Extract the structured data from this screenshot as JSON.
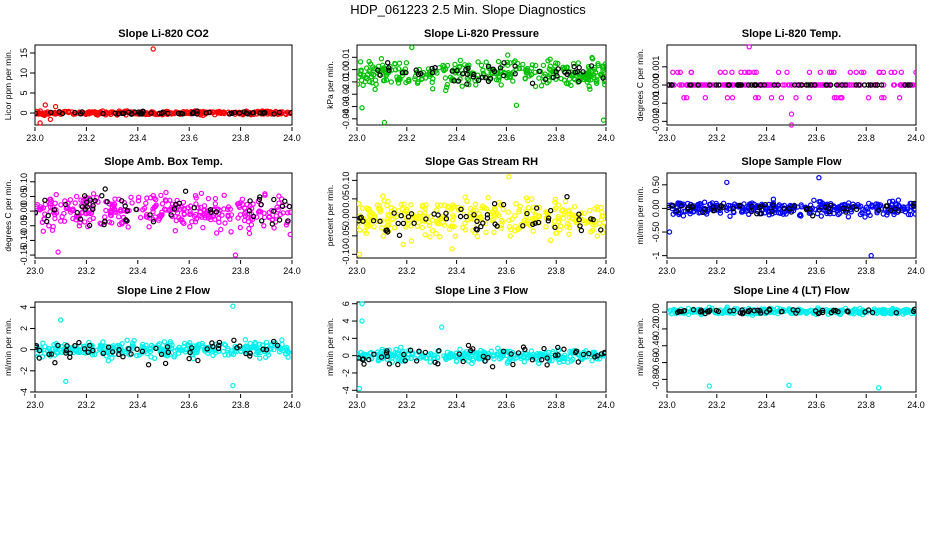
{
  "page": {
    "title": "HDP_061223  2.5 Min. Slope Diagnostics"
  },
  "chart_data": [
    {
      "type": "scatter",
      "title": "Slope Li-820 CO2",
      "ylabel": "Licor ppm per min.",
      "xlim": [
        23.0,
        24.0
      ],
      "xticks": [
        "23.0",
        "23.2",
        "23.4",
        "23.6",
        "23.8",
        "24.0"
      ],
      "ylim": [
        -3,
        17
      ],
      "yticks": [
        -5,
        0,
        5,
        10,
        15
      ],
      "color": "#ff0000",
      "sd": 0.35,
      "black_sd": 0.3,
      "baseline": 0,
      "outliers": [
        {
          "x": 23.46,
          "y": 16.0
        },
        {
          "x": 23.02,
          "y": -2.5
        },
        {
          "x": 23.04,
          "y": 2.0
        },
        {
          "x": 23.08,
          "y": 1.6
        },
        {
          "x": 23.06,
          "y": -1.6
        }
      ]
    },
    {
      "type": "scatter",
      "title": "Slope Li-820 Pressure",
      "ylabel": "kPa per min.",
      "xlim": [
        23.0,
        24.0
      ],
      "xticks": [
        "23.0",
        "23.2",
        "23.4",
        "23.6",
        "23.8",
        "24.0"
      ],
      "ylim": [
        -0.045,
        0.02
      ],
      "yticks": [
        -0.04,
        -0.03,
        -0.02,
        -0.01,
        0.0,
        0.01
      ],
      "color": "#00c000",
      "sd": 0.009,
      "black_sd": 0.007,
      "baseline": -0.003,
      "outliers": [
        {
          "x": 23.11,
          "y": -0.043
        },
        {
          "x": 23.99,
          "y": -0.041
        },
        {
          "x": 23.22,
          "y": 0.018
        },
        {
          "x": 23.02,
          "y": -0.031
        },
        {
          "x": 23.64,
          "y": -0.029
        }
      ]
    },
    {
      "type": "scatter",
      "title": "Slope Li-820 Temp.",
      "ylabel": "degrees C per min.",
      "xlim": [
        23.0,
        24.0
      ],
      "xticks": [
        "23.0",
        "23.2",
        "23.4",
        "23.6",
        "23.8",
        "24.0"
      ],
      "ylim": [
        -0.0022,
        0.0022
      ],
      "yticks": [
        -0.002,
        -0.001,
        0.0,
        0.001
      ],
      "color": "#ff00ff",
      "quantized": [
        0.0007,
        0,
        -0.0007
      ],
      "baseline": 0,
      "outliers": [
        {
          "x": 23.33,
          "y": 0.0021
        },
        {
          "x": 23.5,
          "y": -0.0016
        },
        {
          "x": 23.5,
          "y": -0.0022
        }
      ]
    },
    {
      "type": "scatter",
      "title": "Slope Amb. Box Temp.",
      "ylabel": "degrees C per min.",
      "xlim": [
        23.0,
        24.0
      ],
      "xticks": [
        "23.0",
        "23.2",
        "23.4",
        "23.6",
        "23.8",
        "24.0"
      ],
      "ylim": [
        -0.16,
        0.13
      ],
      "yticks": [
        -0.15,
        -0.1,
        -0.05,
        0.0,
        0.05,
        0.1
      ],
      "color": "#ff00ff",
      "sd": 0.05,
      "black_sd": 0.05,
      "baseline": 0,
      "outliers": [
        {
          "x": 23.09,
          "y": -0.14
        },
        {
          "x": 23.78,
          "y": -0.15
        }
      ]
    },
    {
      "type": "scatter",
      "title": "Slope Gas Stream RH",
      "ylabel": "percent per min.",
      "xlim": [
        23.0,
        24.0
      ],
      "xticks": [
        "23.0",
        "23.2",
        "23.4",
        "23.6",
        "23.8",
        "24.0"
      ],
      "ylim": [
        -0.11,
        0.12
      ],
      "yticks": [
        -0.1,
        -0.05,
        0.0,
        0.05,
        0.1
      ],
      "color": "#ffff00",
      "sd": 0.045,
      "black_sd": 0.04,
      "baseline": 0,
      "outliers": [
        {
          "x": 23.01,
          "y": -0.1
        },
        {
          "x": 23.61,
          "y": 0.11
        }
      ]
    },
    {
      "type": "scatter",
      "title": "Slope Sample Flow",
      "ylabel": "ml/min per min.",
      "xlim": [
        23.0,
        24.0
      ],
      "xticks": [
        "23.0",
        "23.2",
        "23.4",
        "23.6",
        "23.8",
        "24.0"
      ],
      "ylim": [
        -1.05,
        0.75
      ],
      "yticks": [
        -1.0,
        -0.5,
        0.0,
        0.5
      ],
      "color": "#0000ff",
      "sd": 0.13,
      "black_sd": 0.1,
      "baseline": 0,
      "outliers": [
        {
          "x": 23.61,
          "y": 0.65
        },
        {
          "x": 23.82,
          "y": -1.0
        },
        {
          "x": 23.24,
          "y": 0.55
        },
        {
          "x": 23.01,
          "y": -0.5
        }
      ]
    },
    {
      "type": "scatter",
      "title": "Slope Line 2 Flow",
      "ylabel": "ml/min per min.",
      "xlim": [
        23.0,
        24.0
      ],
      "xticks": [
        "23.0",
        "23.2",
        "23.4",
        "23.6",
        "23.8",
        "24.0"
      ],
      "ylim": [
        -4,
        4.5
      ],
      "yticks": [
        -4,
        -2,
        0,
        2,
        4
      ],
      "color": "#00f0f0",
      "sd": 0.55,
      "black_sd": 0.9,
      "baseline": 0,
      "outliers": [
        {
          "x": 23.77,
          "y": 4.1
        },
        {
          "x": 23.77,
          "y": -3.4
        },
        {
          "x": 23.1,
          "y": 2.8
        },
        {
          "x": 23.12,
          "y": -3.0
        }
      ]
    },
    {
      "type": "scatter",
      "title": "Slope Line 3 Flow",
      "ylabel": "ml/min per min.",
      "xlim": [
        23.0,
        24.0
      ],
      "xticks": [
        "23.0",
        "23.2",
        "23.4",
        "23.6",
        "23.8",
        "24.0"
      ],
      "ylim": [
        -4.2,
        6.2
      ],
      "yticks": [
        -4,
        -2,
        0,
        2,
        4,
        6
      ],
      "color": "#00f0f0",
      "sd": 0.6,
      "black_sd": 1.0,
      "baseline": 0,
      "outliers": [
        {
          "x": 23.02,
          "y": 6.0
        },
        {
          "x": 23.02,
          "y": 4.0
        },
        {
          "x": 23.01,
          "y": -3.8
        },
        {
          "x": 23.34,
          "y": 3.3
        }
      ]
    },
    {
      "type": "scatter",
      "title": "Slope Line 4 (LT) Flow",
      "ylabel": "ml/min per min.",
      "xlim": [
        23.0,
        24.0
      ],
      "xticks": [
        "23.0",
        "23.2",
        "23.4",
        "23.6",
        "23.8",
        "24.0"
      ],
      "ylim": [
        -0.95,
        0.12
      ],
      "yticks": [
        -0.8,
        -0.6,
        -0.4,
        -0.2,
        0.0
      ],
      "color": "#00f0f0",
      "sd": 0.03,
      "black_sd": 0.025,
      "baseline": 0.01,
      "outliers": [
        {
          "x": 23.17,
          "y": -0.88
        },
        {
          "x": 23.49,
          "y": -0.87
        },
        {
          "x": 23.85,
          "y": -0.9
        }
      ]
    }
  ]
}
